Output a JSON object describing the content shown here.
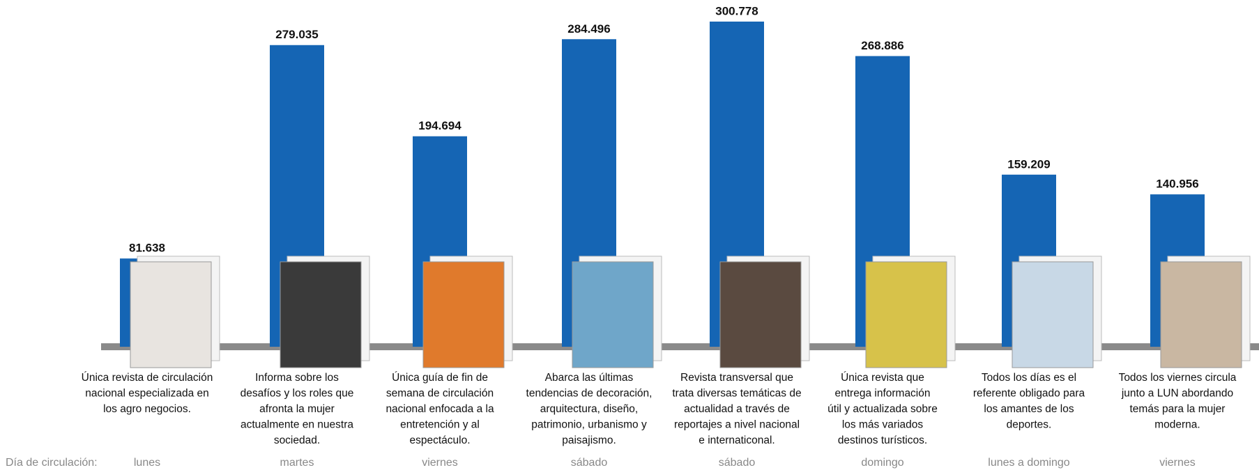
{
  "chart_data": {
    "type": "bar",
    "categories": [
      null,
      null,
      null,
      null,
      null,
      null,
      null,
      null
    ],
    "values": [
      81638,
      279035,
      194694,
      284496,
      300778,
      268886,
      159209,
      140956
    ],
    "value_labels": [
      "81.638",
      "279.035",
      "194.694",
      "284.496",
      "300.778",
      "268.886",
      "159.209",
      "140.956"
    ],
    "color": "#1565b4",
    "descriptions": [
      [
        "Única revista de circulación",
        "nacional especializada en",
        "los agro negocios."
      ],
      [
        "Informa sobre los",
        "desafíos y los roles que",
        "afronta la mujer",
        "actualmente en nuestra",
        "sociedad."
      ],
      [
        "Única guía de fin de",
        "semana de circulación",
        "nacional enfocada a la",
        "entretención y al",
        "espectáculo."
      ],
      [
        "Abarca las últimas",
        "tendencias de decoración,",
        "arquitectura, diseño,",
        "patrimonio, urbanismo y",
        "paisajismo."
      ],
      [
        "Revista transversal que",
        "trata diversas temáticas de",
        "actualidad a través de",
        "reportajes a nivel nacional",
        "e internaticonal."
      ],
      [
        "Única revista que",
        "entrega información",
        "útil y actualizada sobre",
        "los más variados",
        "destinos turísticos."
      ],
      [
        "Todos los días es el",
        "referente obligado para",
        "los amantes de los",
        "deportes."
      ],
      [
        "Todos los viernes circula",
        "junto a LUN abordando",
        "temás para la mujer",
        "moderna."
      ]
    ],
    "day_label": "Día de circulación:",
    "days": [
      "lunes",
      "martes",
      "viernes",
      "sábado",
      "sábado",
      "domingo",
      "lunes a domingo",
      "viernes"
    ]
  }
}
